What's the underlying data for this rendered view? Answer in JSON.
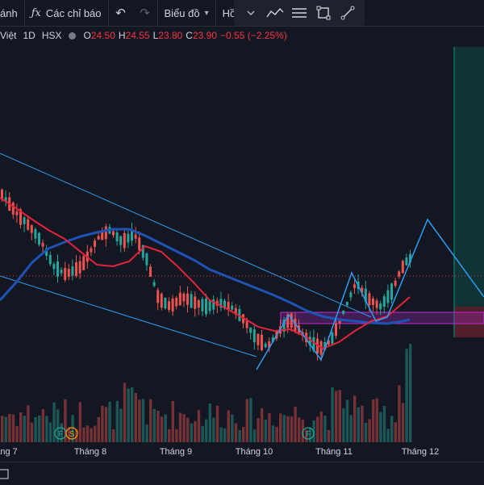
{
  "toolbar": {
    "timeframe_partial": "ánh",
    "indicators_label": "Các chỉ báo",
    "chart_type_label": "Biểu đồ",
    "profile_label": "Hồ sơ"
  },
  "legend": {
    "name_partial": "Việt",
    "interval": "1D",
    "exchange": "HSX",
    "open_key": "O",
    "open": "24.50",
    "high_key": "H",
    "high": "24.55",
    "low_key": "L",
    "low": "23.80",
    "close_key": "C",
    "close": "23.90",
    "change": "−0.55 (−2.25%)"
  },
  "time_axis": {
    "labels": [
      "áng 7",
      "Tháng 8",
      "Tháng 9",
      "Tháng 10",
      "Tháng 11",
      "Tháng 12"
    ]
  },
  "events": {
    "dividend_1": "F",
    "split_1": "S",
    "dividend_2": "F"
  },
  "colors": {
    "background": "#131722",
    "up": "#26a69a",
    "down": "#ef5350",
    "ma_fast": "#e5233a",
    "ma_slow": "#1e53b5",
    "trendline": "#2a9df4",
    "zone": "#9c27b0",
    "profit": "#089981",
    "loss": "#f23645"
  },
  "icons": [
    "fx-icon",
    "undo-icon",
    "redo-icon",
    "chevron-down-icon",
    "trend-line-icon",
    "horizontal-lines-icon",
    "rectangle-icon",
    "ray-icon"
  ]
}
